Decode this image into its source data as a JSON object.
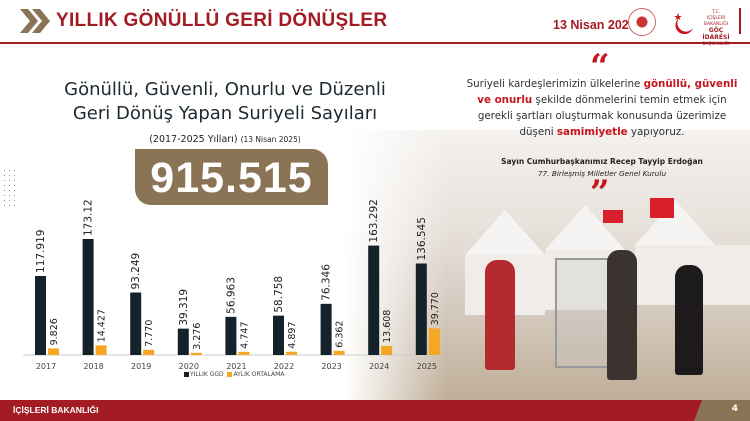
{
  "header": {
    "title": "YILLIK GÖNÜLLÜ GERİ DÖNÜŞLER",
    "date": "13 Nisan 2025",
    "logo_text": "T.C. İÇİŞLERİ BAKANLIĞI GÖÇ İDARESİ BAŞKANLIĞI"
  },
  "headline": {
    "line1": "Gönüllü, Güvenli, Onurlu ve Düzenli",
    "line2": "Geri Dönüş Yapan Suriyeli Sayıları",
    "period": "(2017-2025 Yılları)",
    "asof": "(13 Nisan 2025)",
    "total": "915.515"
  },
  "quote": {
    "p1": "Suriyeli kardeşlerimizin ülkelerine ",
    "h1": "gönüllü, güvenli ve onurlu",
    "p2": " şekilde dönmelerini temin etmek için gerekli şartları oluşturmak konusunda üzerimize düşeni ",
    "h2": "samimiyetle",
    "p3": " yapıyoruz.",
    "open_mark": "“",
    "close_mark": "”",
    "speaker": "Sayın Cumhurbaşkanımız Recep Tayyip Erdoğan",
    "event": "77. Birleşmiş Milletler Genel Kurulu"
  },
  "chart_data": {
    "type": "bar",
    "categories": [
      "2017",
      "2018",
      "2019",
      "2020",
      "2021",
      "2022",
      "2023",
      "2024",
      "2025"
    ],
    "series": [
      {
        "name": "YILLIK GGD",
        "color": "#16222a",
        "values": [
          117919,
          173124,
          93249,
          39319,
          56963,
          58758,
          76346,
          163292,
          136545
        ],
        "labels": [
          "117.919",
          "173.124",
          "93.249",
          "39.319",
          "56.963",
          "58.758",
          "76.346",
          "163.292",
          "136.545"
        ]
      },
      {
        "name": "AYLIK ORTALAMA",
        "color": "#f5a623",
        "values": [
          9826,
          14427,
          7770,
          3276,
          4747,
          4897,
          6362,
          13608,
          39770
        ],
        "labels": [
          "9.826",
          "14.427",
          "7.770",
          "3.276",
          "4.747",
          "4.897",
          "6.362",
          "13.608",
          "39.770"
        ]
      }
    ],
    "legend": "bottom",
    "grid": false
  },
  "footer": {
    "ministry": "İÇİŞLERİ BAKANLIĞI",
    "page": "4"
  },
  "colors": {
    "brand_red": "#a31c24",
    "accent_brown": "#8b7355"
  }
}
